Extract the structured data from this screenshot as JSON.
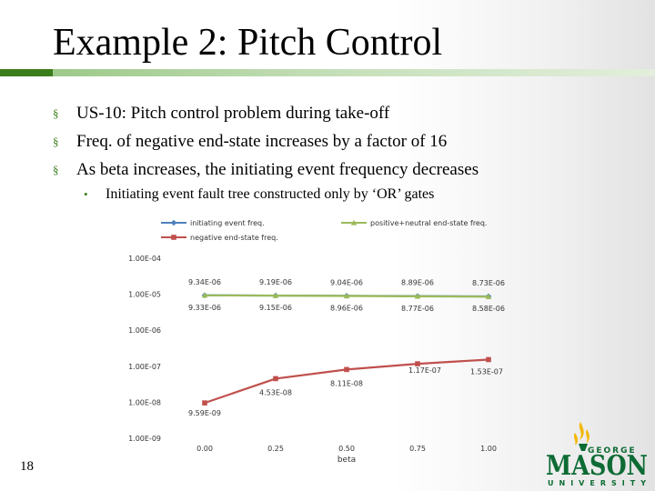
{
  "slide": {
    "title": "Example 2: Pitch Control",
    "bullets": [
      "US-10: Pitch control problem during take-off",
      "Freq. of negative end-state increases by a factor of 16",
      "As beta increases, the initiating event frequency decreases"
    ],
    "sub_bullet": "Initiating event fault tree constructed only by ‘OR’ gates",
    "bullet_marker": "§",
    "sub_bullet_marker": "•",
    "page_number": "18",
    "logo": {
      "word1": "GEORGE",
      "word2": "MASON",
      "word3": "UNIVERSITY"
    }
  },
  "chart_data": {
    "type": "line",
    "xlabel": "beta",
    "ylabel": "",
    "y_scale": "log",
    "ylim": [
      1e-09,
      0.0001
    ],
    "y_ticks": [
      {
        "value": 0.0001,
        "label": "1.00E-04"
      },
      {
        "value": 1e-05,
        "label": "1.00E-05"
      },
      {
        "value": 1e-06,
        "label": "1.00E-06"
      },
      {
        "value": 1e-07,
        "label": "1.00E-07"
      },
      {
        "value": 1e-08,
        "label": "1.00E-08"
      },
      {
        "value": 1e-09,
        "label": "1.00E-09"
      }
    ],
    "categories": [
      "0.00",
      "0.25",
      "0.50",
      "0.75",
      "1.00"
    ],
    "legend_placement": "top",
    "series": [
      {
        "name": "initiating event freq.",
        "color": "#4f81bd",
        "marker": "diamond",
        "values": [
          9.34e-06,
          9.19e-06,
          9.04e-06,
          8.89e-06,
          8.73e-06
        ],
        "labels": [
          "9.34E-06",
          "9.19E-06",
          "9.04E-06",
          "8.89E-06",
          "8.73E-06"
        ]
      },
      {
        "name": "positive+neutral end-state freq.",
        "color": "#9bbb59",
        "marker": "triangle",
        "values": [
          9.33e-06,
          9.15e-06,
          8.96e-06,
          8.77e-06,
          8.58e-06
        ],
        "labels": [
          "9.33E-06",
          "9.15E-06",
          "8.96E-06",
          "8.77E-06",
          "8.58E-06"
        ]
      },
      {
        "name": "negative end-state freq.",
        "color": "#c0504d",
        "marker": "square",
        "values": [
          9.59e-09,
          4.53e-08,
          8.11e-08,
          1.17e-07,
          1.53e-07
        ],
        "labels": [
          "9.59E-09",
          "4.53E-08",
          "8.11E-08",
          "1.17E-07",
          "1.53E-07"
        ]
      }
    ]
  }
}
